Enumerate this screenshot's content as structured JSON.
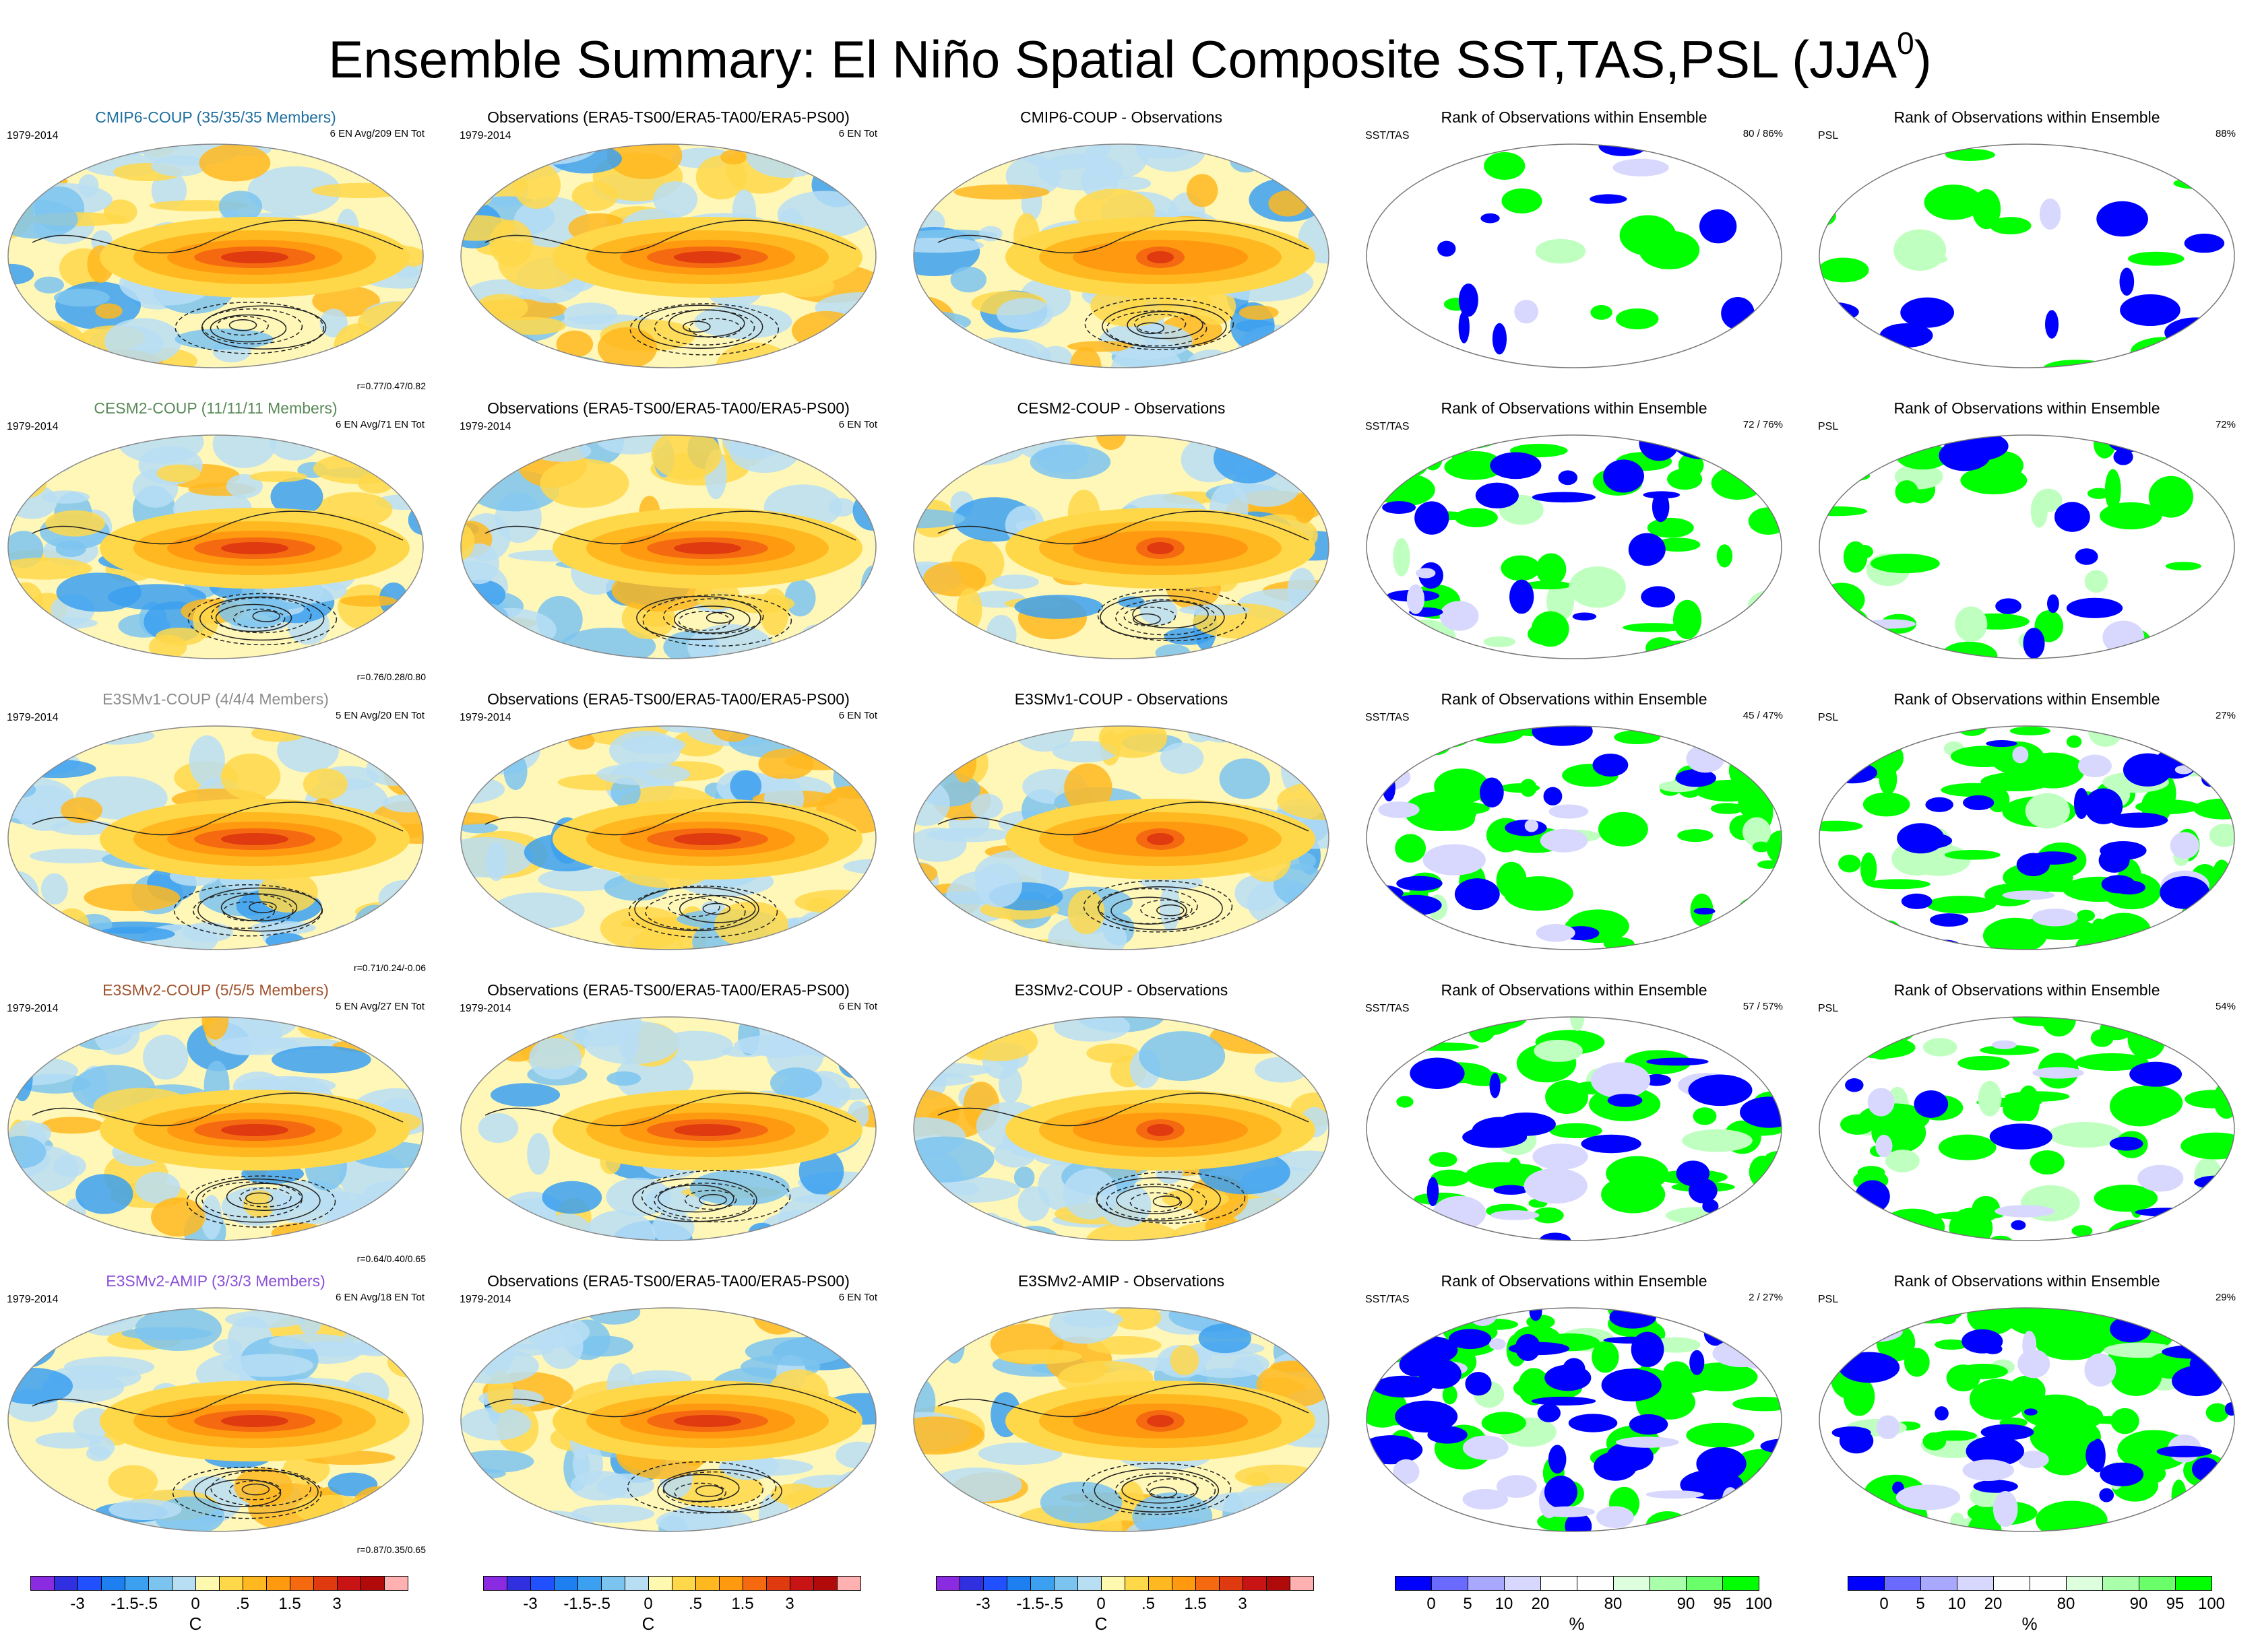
{
  "title": {
    "main": "Ensemble Summary: El Niño Spatial Composite SST,TAS,PSL (JJA",
    "sup": "0",
    "end": ")"
  },
  "period": "1979-2014",
  "rows": [
    {
      "model": {
        "title": "CMIP6-COUP (35/35/35 Members)",
        "color": "#1f6fa0",
        "info": "6 EN Avg/209 EN Tot",
        "r": "r=0.77/0.47/0.82"
      },
      "obs": {
        "title": "Observations (ERA5-TS00/ERA5-TA00/ERA5-PS00)",
        "info": "6 EN Tot"
      },
      "diff": {
        "title": "CMIP6-COUP - Observations"
      },
      "rank1": {
        "title": "Rank of Observations within Ensemble",
        "label": "SST/TAS",
        "pct": "80 /  86%",
        "blue": 0.12,
        "green": 0.08
      },
      "rank2": {
        "title": "Rank of Observations within Ensemble",
        "label": "PSL",
        "pct": "88%",
        "blue": 0.08,
        "green": 0.12
      }
    },
    {
      "model": {
        "title": "CESM2-COUP (11/11/11 Members)",
        "color": "#5a8a5a",
        "info": "6 EN Avg/71 EN Tot",
        "r": "r=0.76/0.28/0.80"
      },
      "obs": {
        "title": "Observations (ERA5-TS00/ERA5-TA00/ERA5-PS00)",
        "info": "6 EN Tot"
      },
      "diff": {
        "title": "CESM2-COUP - Observations"
      },
      "rank1": {
        "title": "Rank of Observations within Ensemble",
        "label": "SST/TAS",
        "pct": "72 /  76%",
        "blue": 0.2,
        "green": 0.35
      },
      "rank2": {
        "title": "Rank of Observations within Ensemble",
        "label": "PSL",
        "pct": "72%",
        "blue": 0.12,
        "green": 0.3
      }
    },
    {
      "model": {
        "title": "E3SMv1-COUP (4/4/4 Members)",
        "color": "#8c8c8c",
        "info": "5 EN Avg/20 EN Tot",
        "r": "r=0.71/0.24/-0.06"
      },
      "obs": {
        "title": "Observations (ERA5-TS00/ERA5-TA00/ERA5-PS00)",
        "info": "6 EN Tot"
      },
      "diff": {
        "title": "E3SMv1-COUP - Observations"
      },
      "rank1": {
        "title": "Rank of Observations within Ensemble",
        "label": "SST/TAS",
        "pct": "45 /  47%",
        "blue": 0.25,
        "green": 0.45
      },
      "rank2": {
        "title": "Rank of Observations within Ensemble",
        "label": "PSL",
        "pct": "27%",
        "blue": 0.3,
        "green": 0.55
      }
    },
    {
      "model": {
        "title": "E3SMv2-COUP (5/5/5 Members)",
        "color": "#a0522d",
        "info": "5 EN Avg/27 EN Tot",
        "r": "r=0.64/0.40/0.65"
      },
      "obs": {
        "title": "Observations (ERA5-TS00/ERA5-TA00/ERA5-PS00)",
        "info": "6 EN Tot"
      },
      "diff": {
        "title": "E3SMv2-COUP - Observations"
      },
      "rank1": {
        "title": "Rank of Observations within Ensemble",
        "label": "SST/TAS",
        "pct": "57 /  57%",
        "blue": 0.22,
        "green": 0.4
      },
      "rank2": {
        "title": "Rank of Observations within Ensemble",
        "label": "PSL",
        "pct": "54%",
        "blue": 0.15,
        "green": 0.45
      }
    },
    {
      "model": {
        "title": "E3SMv2-AMIP (3/3/3 Members)",
        "color": "#8a4fd8",
        "info": "6 EN Avg/18 EN Tot",
        "r": "r=0.87/0.35/0.65"
      },
      "obs": {
        "title": "Observations (ERA5-TS00/ERA5-TA00/ERA5-PS00)",
        "info": "6 EN Tot"
      },
      "diff": {
        "title": "E3SMv2-AMIP - Observations"
      },
      "rank1": {
        "title": "Rank of Observations within Ensemble",
        "label": "SST/TAS",
        "pct": "2 /  27%",
        "blue": 0.45,
        "green": 0.4
      },
      "rank2": {
        "title": "Rank of Observations within Ensemble",
        "label": "PSL",
        "pct": "29%",
        "blue": 0.3,
        "green": 0.55
      }
    }
  ],
  "colorbars": {
    "temp": {
      "unit": "C",
      "ticks": [
        "-3",
        "-1.5",
        "-.5",
        "0",
        ".5",
        "1.5",
        "3"
      ],
      "colors": [
        "#8a2be2",
        "#3030e0",
        "#2050ff",
        "#1e7ff0",
        "#3ca0f0",
        "#7cc4f0",
        "#b8def4",
        "#fff9b0",
        "#ffd84a",
        "#ffb820",
        "#ff9a10",
        "#f56a10",
        "#e03a10",
        "#c81414",
        "#b00a0a",
        "#ffb0b0"
      ]
    },
    "rank": {
      "unit": "%",
      "ticks": [
        "0",
        "5",
        "10",
        "20",
        "80",
        "90",
        "95",
        "100"
      ],
      "colors": [
        "#0000ff",
        "#6a6aff",
        "#a8a8ff",
        "#d8d8ff",
        "#ffffff",
        "#ffffff",
        "#ddffdd",
        "#aaffaa",
        "#6aff6a",
        "#00ff00"
      ]
    }
  }
}
